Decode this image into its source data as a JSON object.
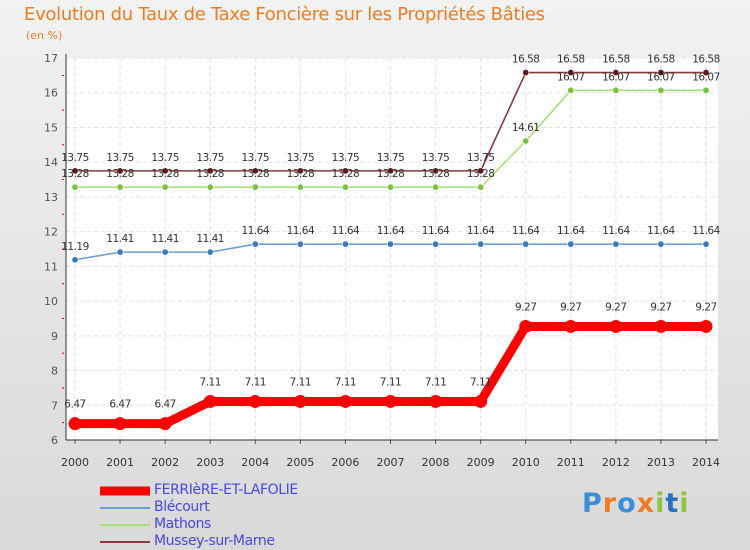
{
  "title": "Evolution du Taux de Taxe Foncière sur les Propriétés Bâties",
  "unit": "(en %)",
  "logo": {
    "text": "Proxiti",
    "letters": [
      "P",
      "r",
      "o",
      "x",
      "i",
      "t",
      "i"
    ]
  },
  "chart_data": {
    "type": "line",
    "title": "Evolution du Taux de Taxe Foncière sur les Propriétés Bâties",
    "ylabel": "(en %)",
    "xlabel": "",
    "x": [
      2000,
      2001,
      2002,
      2003,
      2004,
      2005,
      2006,
      2007,
      2008,
      2009,
      2010,
      2011,
      2012,
      2013,
      2014
    ],
    "ylim": [
      6,
      17
    ],
    "yticks": [
      6,
      7,
      8,
      9,
      10,
      11,
      12,
      13,
      14,
      15,
      16,
      17
    ],
    "grid": true,
    "legend_position": "bottom-left",
    "series": [
      {
        "name": "FERRIèRE-ET-LAFOLIE",
        "color": "#ff0000",
        "marker_color": "#ff0000",
        "style": "thick",
        "values": [
          6.47,
          6.47,
          6.47,
          7.11,
          7.11,
          7.11,
          7.11,
          7.11,
          7.11,
          7.11,
          9.27,
          9.27,
          9.27,
          9.27,
          9.27
        ],
        "labels": [
          "6.47",
          "6.47",
          "6.47",
          "7.11",
          "7.11",
          "7.11",
          "7.11",
          "7.11",
          "7.11",
          "7.11",
          "9.27",
          "9.27",
          "9.27",
          "9.27",
          "9.27"
        ]
      },
      {
        "name": "Blécourt",
        "color": "#6b9fd6",
        "marker_color": "#3a7bbf",
        "style": "thin",
        "values": [
          11.19,
          11.41,
          11.41,
          11.41,
          11.64,
          11.64,
          11.64,
          11.64,
          11.64,
          11.64,
          11.64,
          11.64,
          11.64,
          11.64,
          11.64
        ],
        "labels": [
          "11.19",
          "11.41",
          "11.41",
          "11.41",
          "11.64",
          "11.64",
          "11.64",
          "11.64",
          "11.64",
          "11.64",
          "11.64",
          "11.64",
          "11.64",
          "11.64",
          "11.64"
        ]
      },
      {
        "name": "Mathons",
        "color": "#a8e07a",
        "marker_color": "#7cc242",
        "style": "thin",
        "values": [
          13.28,
          13.28,
          13.28,
          13.28,
          13.28,
          13.28,
          13.28,
          13.28,
          13.28,
          13.28,
          14.61,
          16.07,
          16.07,
          16.07,
          16.07
        ],
        "labels": [
          "13.28",
          "13.28",
          "13.28",
          "13.28",
          "13.28",
          "13.28",
          "13.28",
          "13.28",
          "13.28",
          "13.28",
          "14.61",
          "16.07",
          "16.07",
          "16.07",
          "16.07"
        ]
      },
      {
        "name": "Mussey-sur-Marne",
        "color": "#8b3a3a",
        "marker_color": "#5c1a1a",
        "style": "thin",
        "values": [
          13.75,
          13.75,
          13.75,
          13.75,
          13.75,
          13.75,
          13.75,
          13.75,
          13.75,
          13.75,
          16.58,
          16.58,
          16.58,
          16.58,
          16.58
        ],
        "labels": [
          "13.75",
          "13.75",
          "13.75",
          "13.75",
          "13.75",
          "13.75",
          "13.75",
          "13.75",
          "13.75",
          "13.75",
          "16.58",
          "16.58",
          "16.58",
          "16.58",
          "16.58"
        ]
      }
    ]
  }
}
